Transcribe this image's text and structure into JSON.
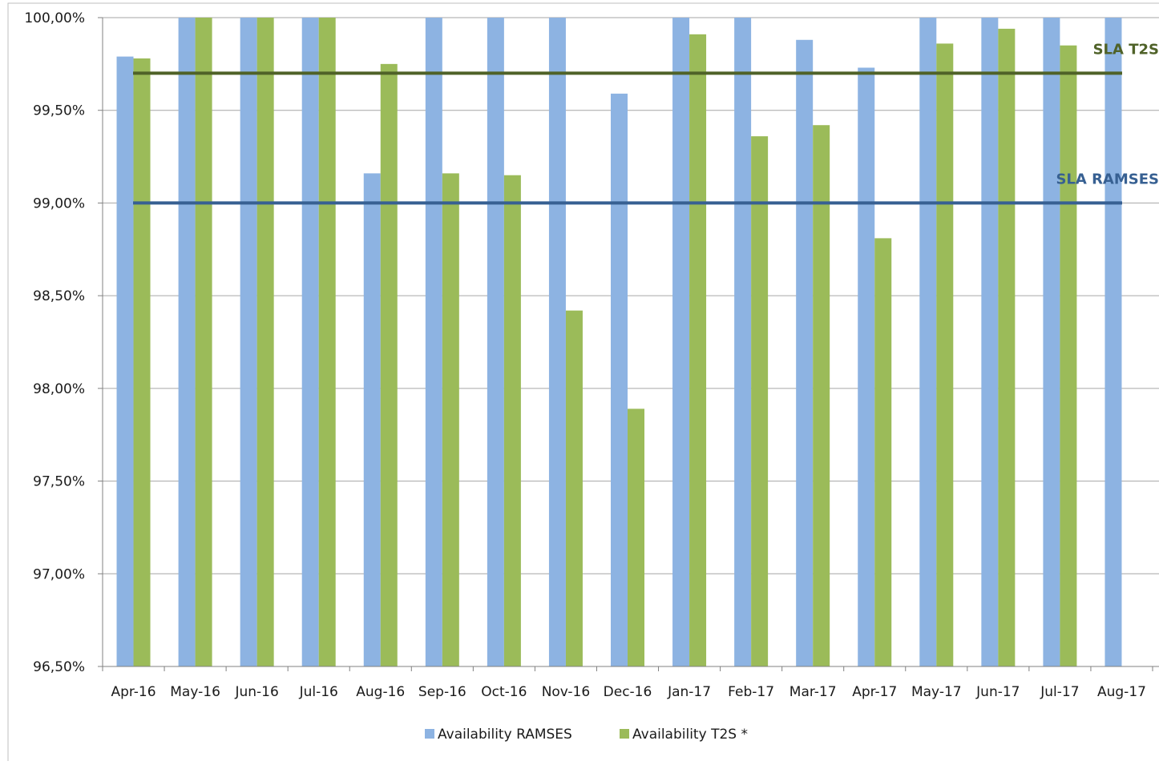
{
  "chart_data": {
    "type": "bar",
    "title": "",
    "xlabel": "",
    "ylabel": "",
    "categories": [
      "Apr-16",
      "May-16",
      "Jun-16",
      "Jul-16",
      "Aug-16",
      "Sep-16",
      "Oct-16",
      "Nov-16",
      "Dec-16",
      "Jan-17",
      "Feb-17",
      "Mar-17",
      "Apr-17",
      "May-17",
      "Jun-17",
      "Jul-17",
      "Aug-17"
    ],
    "series": [
      {
        "name": "Availability RAMSES",
        "color": "#8db3e2",
        "values": [
          99.79,
          100.0,
          100.0,
          100.0,
          99.16,
          100.0,
          100.0,
          100.0,
          99.59,
          100.0,
          100.0,
          99.88,
          99.73,
          100.0,
          100.0,
          100.0,
          100.0
        ]
      },
      {
        "name": "Availability T2S *",
        "color": "#9bbb59",
        "values": [
          99.78,
          100.0,
          100.0,
          100.0,
          99.75,
          99.16,
          99.15,
          98.42,
          97.89,
          99.91,
          99.36,
          99.42,
          98.81,
          99.86,
          99.94,
          99.85,
          null
        ]
      }
    ],
    "reference_lines": [
      {
        "label": "SLA T2S",
        "value": 99.7,
        "color": "#4f6228"
      },
      {
        "label": "SLA RAMSES",
        "value": 99.0,
        "color": "#376092"
      }
    ],
    "ylim": [
      96.5,
      100.0
    ],
    "yticks": [
      {
        "value": 100.0,
        "label": "100,00%"
      },
      {
        "value": 99.5,
        "label": "99,50%"
      },
      {
        "value": 99.0,
        "label": "99,00%"
      },
      {
        "value": 98.5,
        "label": "98,50%"
      },
      {
        "value": 98.0,
        "label": "98,00%"
      },
      {
        "value": 97.5,
        "label": "97,50%"
      },
      {
        "value": 97.0,
        "label": "97,00%"
      },
      {
        "value": 96.5,
        "label": "96,50%"
      }
    ],
    "grid": true,
    "legend_position": "bottom"
  }
}
